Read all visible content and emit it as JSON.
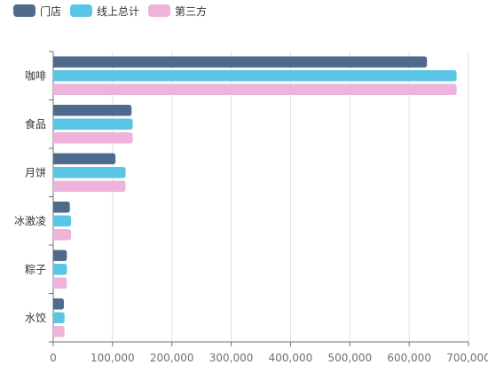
{
  "chart_data": {
    "type": "bar",
    "orientation": "horizontal",
    "categories": [
      "咖啡",
      "食品",
      "月饼",
      "冰激凌",
      "粽子",
      "水饺"
    ],
    "series": [
      {
        "name": "门店",
        "color": "#4e6a8c",
        "values": [
          630000,
          132000,
          105000,
          28000,
          23000,
          18000
        ]
      },
      {
        "name": "线上总计",
        "color": "#5bc5e5",
        "values": [
          680000,
          134000,
          122000,
          30000,
          23000,
          19000
        ]
      },
      {
        "name": "第三方",
        "color": "#eeb3da",
        "values": [
          680000,
          134000,
          122000,
          30000,
          23000,
          19000
        ]
      }
    ],
    "xlim": [
      0,
      700000
    ],
    "xticks": [
      "0",
      "100,000",
      "200,000",
      "300,000",
      "400,000",
      "500,000",
      "600,000",
      "700,000"
    ],
    "grid": true,
    "legend_position": "top-left"
  }
}
